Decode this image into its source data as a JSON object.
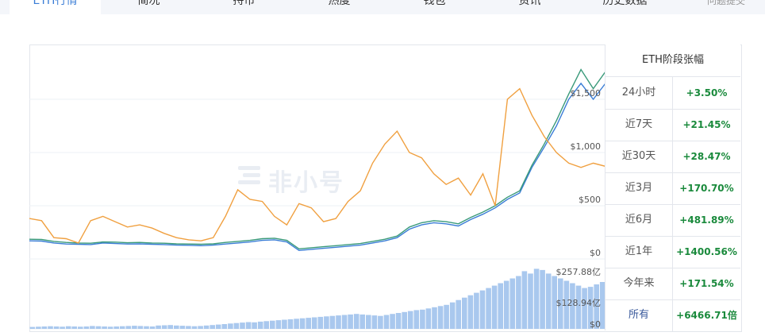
{
  "tabs": [
    {
      "label": "ETH行情",
      "active": true
    },
    {
      "label": "简况"
    },
    {
      "label": "持币"
    },
    {
      "label": "热度"
    },
    {
      "label": "钱包"
    },
    {
      "label": "资讯"
    },
    {
      "label": "历史数据"
    }
  ],
  "feedback": "问题提交",
  "watermark": "非小号",
  "chart_data": [
    {
      "type": "line",
      "series": [
        {
          "color": "#3a7dd6",
          "values": [
            170,
            168,
            150,
            140,
            138,
            135,
            150,
            145,
            140,
            142,
            138,
            135,
            130,
            128,
            125,
            130,
            140,
            150,
            160,
            175,
            180,
            160,
            80,
            90,
            100,
            110,
            120,
            130,
            150,
            170,
            200,
            280,
            320,
            340,
            330,
            310,
            370,
            420,
            480,
            560,
            620,
            860,
            1050,
            1250,
            1500,
            1650,
            1500,
            1650
          ]
        },
        {
          "color": "#3a9a7a",
          "values": [
            185,
            183,
            165,
            155,
            150,
            148,
            160,
            158,
            152,
            155,
            150,
            148,
            142,
            140,
            138,
            142,
            155,
            165,
            175,
            190,
            195,
            175,
            95,
            105,
            115,
            125,
            135,
            145,
            165,
            185,
            215,
            300,
            340,
            360,
            350,
            330,
            390,
            440,
            500,
            580,
            640,
            880,
            1080,
            1300,
            1550,
            1780,
            1600,
            1760
          ]
        },
        {
          "color": "#f0a040",
          "values": [
            380,
            360,
            200,
            190,
            150,
            360,
            400,
            350,
            300,
            320,
            290,
            240,
            200,
            180,
            170,
            200,
            400,
            650,
            560,
            540,
            400,
            320,
            520,
            480,
            350,
            380,
            540,
            640,
            900,
            1080,
            1200,
            1000,
            950,
            800,
            700,
            760,
            600,
            800,
            500,
            1500,
            1600,
            1350,
            1150,
            1000,
            900,
            860,
            900,
            870
          ]
        }
      ],
      "ylabels_main": [
        "$1,500",
        "$1,000",
        "$500",
        "$0"
      ],
      "ylim_main": [
        0,
        2000
      ]
    },
    {
      "type": "bar",
      "values": [
        8,
        9,
        10,
        11,
        10,
        9,
        11,
        10,
        9,
        10,
        12,
        11,
        10,
        9,
        10,
        11,
        12,
        13,
        12,
        11,
        10,
        14,
        15,
        16,
        14,
        13,
        12,
        11,
        12,
        14,
        16,
        18,
        20,
        22,
        24,
        26,
        28,
        27,
        30,
        32,
        34,
        36,
        38,
        40,
        42,
        44,
        46,
        48,
        50,
        52,
        54,
        56,
        58,
        60,
        62,
        60,
        58,
        56,
        54,
        58,
        62,
        66,
        70,
        74,
        78,
        80,
        85,
        90,
        95,
        100,
        110,
        120,
        130,
        140,
        150,
        160,
        170,
        180,
        190,
        200,
        210,
        220,
        240,
        230,
        250,
        245,
        230,
        220,
        210,
        200,
        190,
        180,
        170,
        175,
        185,
        195
      ],
      "ylabels_vol": [
        "$257.88亿",
        "$128.94亿",
        "$0"
      ],
      "ylim_vol": [
        0,
        257.88
      ]
    }
  ],
  "stats": {
    "title": "ETH阶段张幅",
    "rows": [
      {
        "key": "24小时",
        "value": "+3.50%"
      },
      {
        "key": "近7天",
        "value": "+21.45%"
      },
      {
        "key": "近30天",
        "value": "+28.47%"
      },
      {
        "key": "近3月",
        "value": "+170.70%"
      },
      {
        "key": "近6月",
        "value": "+481.89%"
      },
      {
        "key": "近1年",
        "value": "+1400.56%"
      },
      {
        "key": "今年来",
        "value": "+171.54%"
      },
      {
        "key": "所有",
        "value": "+6466.71倍"
      }
    ]
  }
}
